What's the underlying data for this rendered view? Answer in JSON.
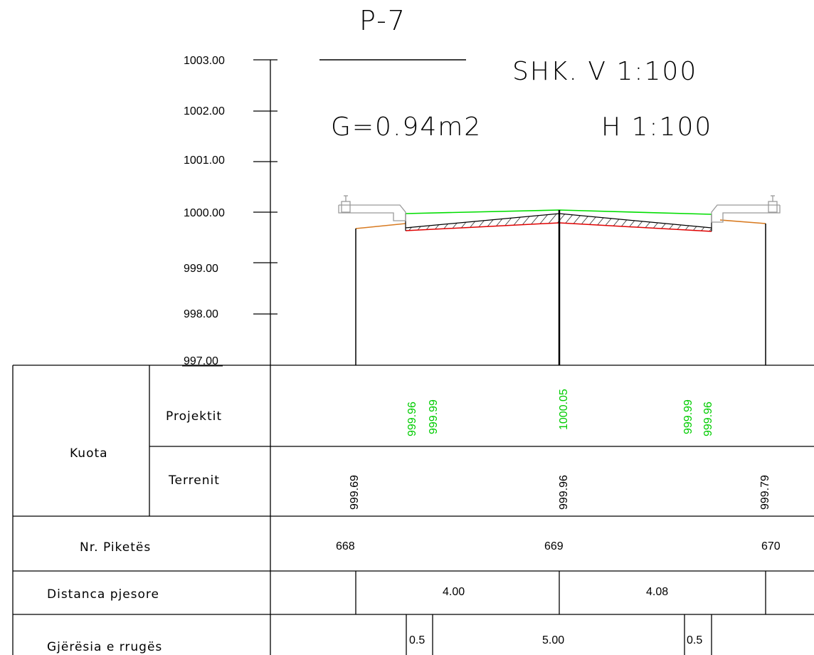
{
  "title": "P-7",
  "area": "G=0.94m2",
  "scale": {
    "vertical": "SHK. V 1:100",
    "horizontal": "H 1:100"
  },
  "elevation_axis": [
    "1003.00",
    "1002.00",
    "1001.00",
    "1000.00",
    "999.00",
    "998.00",
    "997.00"
  ],
  "colors": {
    "design_line": "#00dd00",
    "terrain_line": "#d87a20",
    "subgrade_line": "#e00000",
    "structure": "#9a9a9a"
  },
  "table": {
    "group_label": "Kuota",
    "rows": {
      "design": "Projektit",
      "terrain": "Terrenit",
      "station": "Nr. Piketës",
      "distance": "Distanca pjesore",
      "width": "Gjërësia e rrugës"
    },
    "design_elevations": [
      "999.96",
      "999.99",
      "1000.05",
      "999.99",
      "999.96"
    ],
    "terrain_elevations": [
      "999.69",
      "999.96",
      "999.79"
    ],
    "stations": [
      "668",
      "669",
      "670"
    ],
    "distances": [
      "4.00",
      "4.08"
    ],
    "widths": [
      "0.5",
      "5.00",
      "0.5"
    ]
  }
}
